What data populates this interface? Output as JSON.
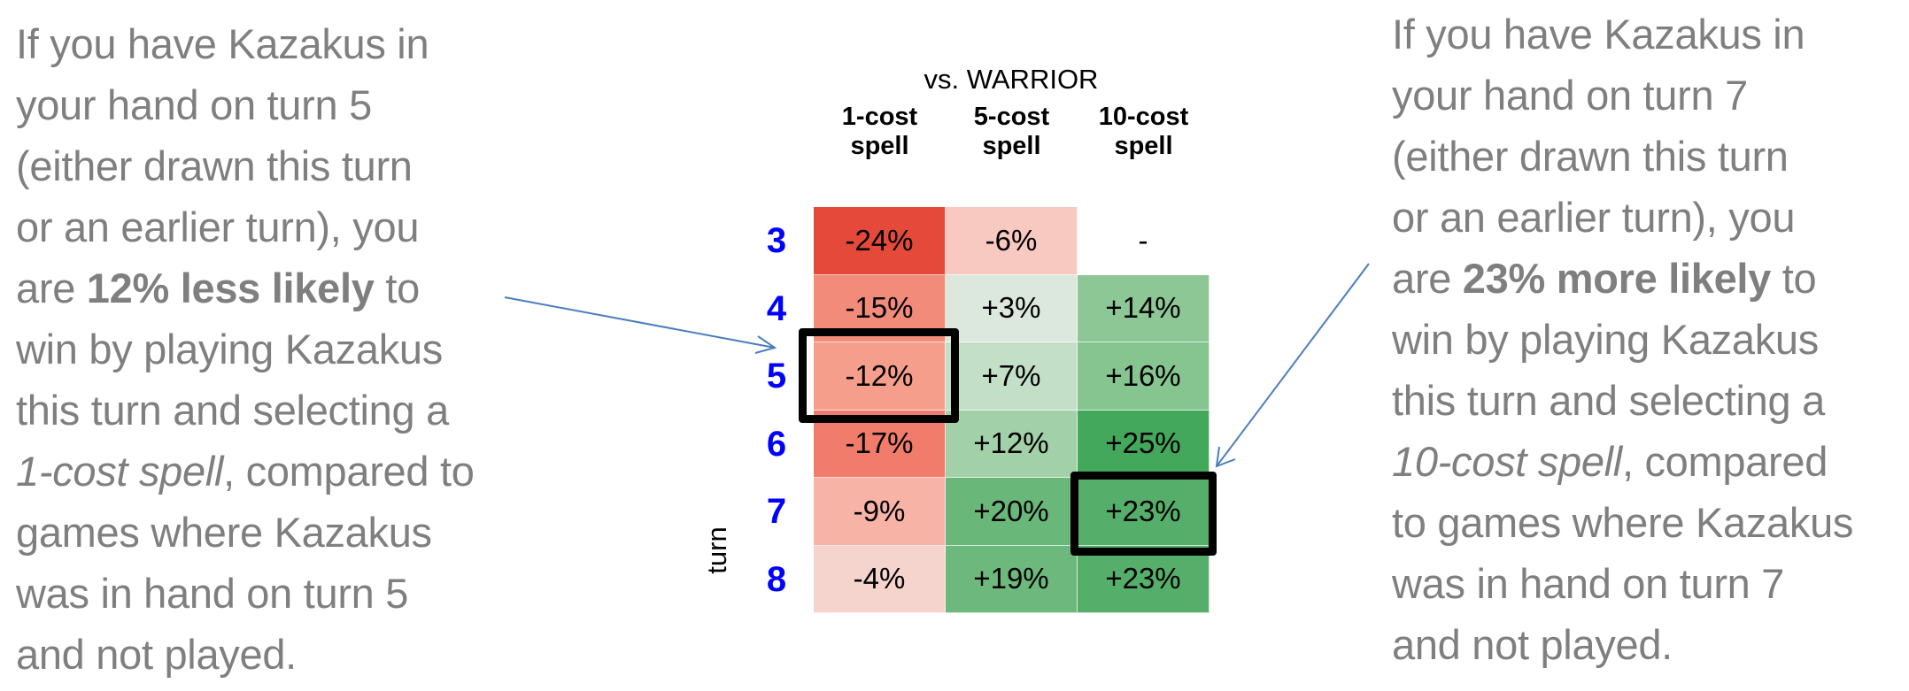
{
  "annotations": {
    "left": {
      "lines": [
        [
          {
            "t": "If you have Kazakus in"
          }
        ],
        [
          {
            "t": "your hand on turn 5"
          }
        ],
        [
          {
            "t": "(either drawn this turn"
          }
        ],
        [
          {
            "t": "or an earlier turn), you"
          }
        ],
        [
          {
            "t": "are "
          },
          {
            "t": "12% less likely",
            "style": "bold"
          },
          {
            "t": " to"
          }
        ],
        [
          {
            "t": "win by playing Kazakus"
          }
        ],
        [
          {
            "t": "this turn and selecting a"
          }
        ],
        [
          {
            "t": "1-cost spell",
            "style": "italic"
          },
          {
            "t": ", compared to"
          }
        ],
        [
          {
            "t": "games where Kazakus"
          }
        ],
        [
          {
            "t": "was in hand on turn 5"
          }
        ],
        [
          {
            "t": "and not played."
          }
        ]
      ]
    },
    "right": {
      "lines": [
        [
          {
            "t": "If you have Kazakus in"
          }
        ],
        [
          {
            "t": "your hand on turn 7"
          }
        ],
        [
          {
            "t": "(either drawn this turn"
          }
        ],
        [
          {
            "t": "or an earlier turn), you"
          }
        ],
        [
          {
            "t": "are "
          },
          {
            "t": "23% more likely",
            "style": "bold"
          },
          {
            "t": " to"
          }
        ],
        [
          {
            "t": "win by playing Kazakus"
          }
        ],
        [
          {
            "t": "this turn and selecting a"
          }
        ],
        [
          {
            "t": "10-cost spell",
            "style": "italic"
          },
          {
            "t": ", compared"
          }
        ],
        [
          {
            "t": "to games where Kazakus"
          }
        ],
        [
          {
            "t": "was in hand on turn 7"
          }
        ],
        [
          {
            "t": "and not played."
          }
        ]
      ]
    }
  },
  "colors": {
    "text_gray": "#7f7f7f",
    "row_label_blue": "#0000ff",
    "arrow_blue": "#4a7ebb",
    "highlight_border": "#000000"
  },
  "chart_data": {
    "type": "heatmap",
    "title": "vs. WARRIOR",
    "xlabel": "",
    "ylabel": "turn",
    "columns": [
      "1-cost spell",
      "5-cost spell",
      "10-cost spell"
    ],
    "column_headers": [
      {
        "line1": "1-cost",
        "line2": "spell"
      },
      {
        "line1": "5-cost",
        "line2": "spell"
      },
      {
        "line1": "10-cost",
        "line2": "spell"
      }
    ],
    "rows": [
      "3",
      "4",
      "5",
      "6",
      "7",
      "8"
    ],
    "values": [
      [
        -24,
        -6,
        null
      ],
      [
        -15,
        3,
        14
      ],
      [
        -12,
        7,
        16
      ],
      [
        -17,
        12,
        25
      ],
      [
        -9,
        20,
        23
      ],
      [
        -4,
        19,
        23
      ]
    ],
    "labels": [
      [
        "-24%",
        "-6%",
        "-"
      ],
      [
        "-15%",
        "+3%",
        "+14%"
      ],
      [
        "-12%",
        "+7%",
        "+16%"
      ],
      [
        "-17%",
        "+12%",
        "+25%"
      ],
      [
        "-9%",
        "+20%",
        "+23%"
      ],
      [
        "-4%",
        "+19%",
        "+23%"
      ]
    ],
    "cell_colors": [
      [
        "#e5493a",
        "#f7c9c1",
        "#ffffff"
      ],
      [
        "#f28b79",
        "#dce8de",
        "#8dc796"
      ],
      [
        "#f59e8c",
        "#c4dfc8",
        "#86c490"
      ],
      [
        "#f17c6b",
        "#a2d0a8",
        "#43a85b"
      ],
      [
        "#f7b3a6",
        "#6ab77a",
        "#56ae6b"
      ],
      [
        "#f5d4ce",
        "#6db87c",
        "#56ae6b"
      ]
    ],
    "color_scale": "red (negative) to green (positive)",
    "highlighted_cells": [
      {
        "row": "5",
        "column": "1-cost spell",
        "label": "-12%"
      },
      {
        "row": "7",
        "column": "10-cost spell",
        "label": "+23%"
      }
    ],
    "grid": false,
    "legend": "none"
  }
}
